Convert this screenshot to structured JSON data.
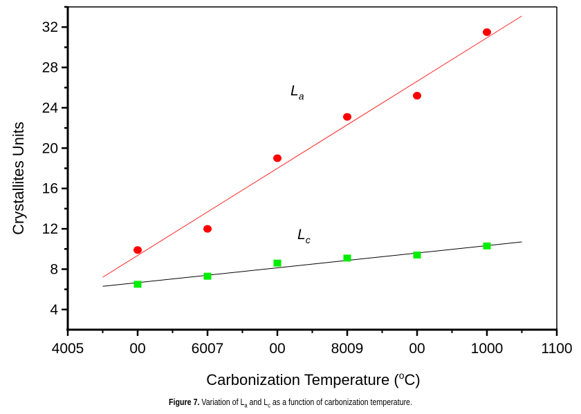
{
  "chart_data": {
    "type": "scatter",
    "xlabel": "Carbonization Temperature (",
    "xlabel_unit_degree": "o",
    "xlabel_unit": "C)",
    "ylabel": "Crystallites Units",
    "xlim": [
      400,
      1100
    ],
    "ylim": [
      2,
      34
    ],
    "x_tick_values": [
      400,
      500,
      600,
      700,
      800,
      900,
      1000,
      1100
    ],
    "x_tick_labels": [
      "4005",
      "00",
      "6007",
      "00",
      "8009",
      "00",
      "1000",
      "1100"
    ],
    "y_ticks": [
      4,
      8,
      12,
      16,
      20,
      24,
      28,
      32
    ],
    "y_tick_labels": [
      "4",
      "8",
      "12",
      "16",
      "20",
      "24",
      "28",
      "32"
    ],
    "grid": false,
    "series": [
      {
        "name": "La",
        "label_main": "L",
        "label_sub": "a",
        "marker": "circle",
        "color": "#ff0000",
        "fit_color": "#ff2020",
        "x": [
          500,
          600,
          700,
          800,
          900,
          1000
        ],
        "values": [
          9.9,
          12.0,
          19.0,
          23.1,
          25.2,
          31.5
        ],
        "fit": {
          "x": [
            450,
            1050
          ],
          "y": [
            7.2,
            33.1
          ]
        }
      },
      {
        "name": "Lc",
        "label_main": "L",
        "label_sub": "c",
        "marker": "square",
        "color": "#00ee00",
        "fit_color": "#000000",
        "x": [
          500,
          600,
          700,
          800,
          900,
          1000
        ],
        "values": [
          6.5,
          7.3,
          8.6,
          9.1,
          9.4,
          10.3
        ],
        "fit": {
          "x": [
            450,
            1050
          ],
          "y": [
            6.3,
            10.7
          ]
        }
      }
    ]
  },
  "caption": {
    "figure_label": "Figure 7.",
    "text_1": " Variation of  L",
    "sub_1": "a",
    "text_2": " and L",
    "sub_2": "c",
    "text_3": "  as a function of carbonization temperature."
  }
}
